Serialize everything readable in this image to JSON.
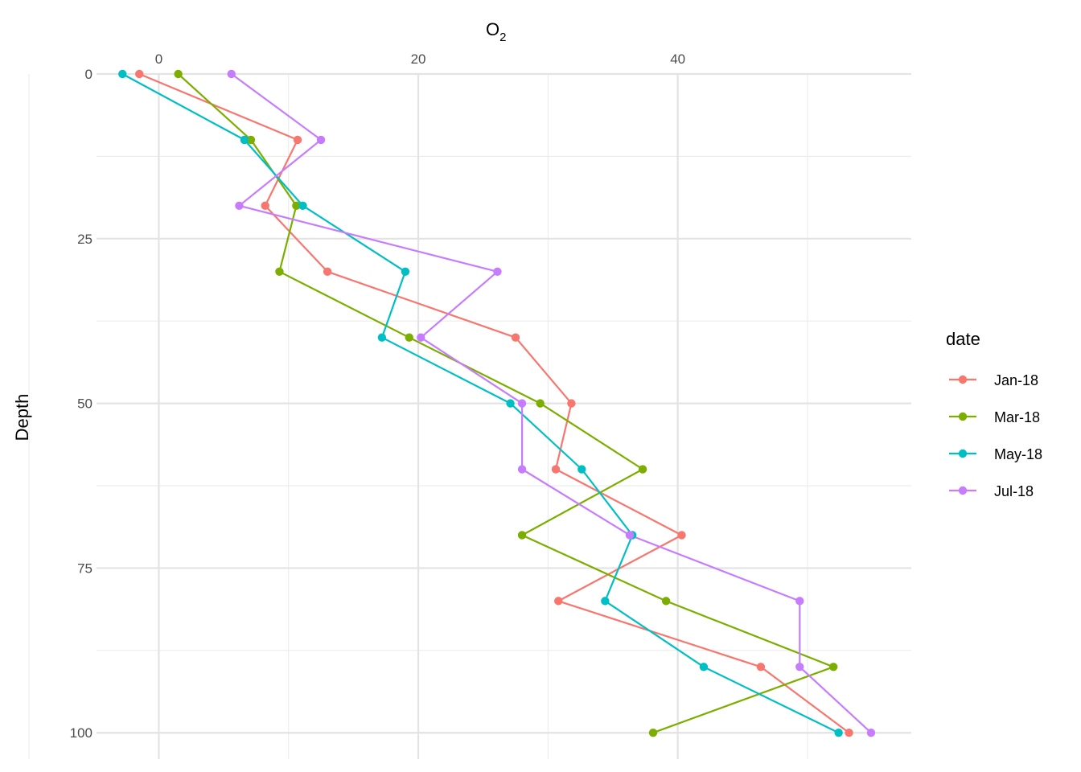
{
  "chart_data": {
    "type": "line",
    "title": "",
    "xlabel": "O",
    "xlabel_sub": "2",
    "ylabel": "Depth",
    "x_axis_position": "top",
    "y_reversed": true,
    "xlim": [
      -4.8,
      58
    ],
    "ylim": [
      0,
      104
    ],
    "x_ticks": [
      0,
      20,
      40
    ],
    "x_minor": [
      -10,
      10,
      30,
      50
    ],
    "y_ticks": [
      0,
      25,
      50,
      75,
      100
    ],
    "y_minor": [
      12.5,
      37.5,
      62.5,
      87.5
    ],
    "grid": true,
    "legend": {
      "title": "date",
      "position": "right"
    },
    "series": [
      {
        "name": "Jan-18",
        "color": "#F8766D",
        "x": [
          -1.5,
          10.7,
          8.2,
          13.0,
          27.5,
          31.8,
          30.6,
          40.3,
          30.8,
          46.4,
          53.2
        ],
        "y": [
          0,
          10,
          20,
          30,
          40,
          50,
          60,
          70,
          80,
          90,
          100
        ]
      },
      {
        "name": "Mar-18",
        "color": "#7CAE00",
        "x": [
          1.5,
          7.1,
          10.6,
          9.3,
          19.3,
          29.4,
          37.3,
          28.0,
          39.1,
          52.0,
          38.1
        ],
        "y": [
          0,
          10,
          20,
          30,
          40,
          50,
          60,
          70,
          80,
          90,
          100
        ]
      },
      {
        "name": "May-18",
        "color": "#00BFC4",
        "x": [
          -2.8,
          6.6,
          11.1,
          19.0,
          17.2,
          27.1,
          32.6,
          36.5,
          34.4,
          42.0,
          52.4
        ],
        "y": [
          0,
          10,
          20,
          30,
          40,
          50,
          60,
          70,
          80,
          90,
          100
        ]
      },
      {
        "name": "Jul-18",
        "color": "#C77CFF",
        "x": [
          5.6,
          12.5,
          6.2,
          26.1,
          20.2,
          28.0,
          28.0,
          36.3,
          49.4,
          49.4,
          54.9
        ],
        "y": [
          0,
          10,
          20,
          30,
          40,
          50,
          60,
          70,
          80,
          90,
          100
        ]
      }
    ]
  }
}
